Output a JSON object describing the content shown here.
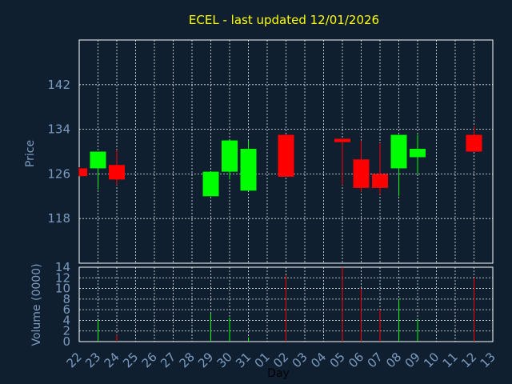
{
  "chart_data": [
    {
      "type": "candlestick",
      "title": "ECEL - last updated 12/01/2026",
      "ylabel": "Price",
      "ylim": [
        110,
        150
      ],
      "yticks": [
        118,
        126,
        134,
        142
      ],
      "grid": true,
      "categories": [
        "22",
        "23",
        "24",
        "25",
        "26",
        "27",
        "28",
        "29",
        "30",
        "31",
        "01",
        "02",
        "03",
        "04",
        "05",
        "06",
        "07",
        "08",
        "09",
        "10",
        "11",
        "12",
        "13"
      ],
      "candles": [
        {
          "x": "22",
          "open": 127.0,
          "high": 127.2,
          "low": 125.6,
          "close": 125.6,
          "color": "red"
        },
        {
          "x": "23",
          "open": 127.0,
          "high": 130.0,
          "low": 123.2,
          "close": 130.0,
          "color": "green"
        },
        {
          "x": "24",
          "open": 127.6,
          "high": 130.3,
          "low": 124.0,
          "close": 125.0,
          "color": "red"
        },
        {
          "x": "29",
          "open": 122.0,
          "high": 126.4,
          "low": 122.0,
          "close": 126.4,
          "color": "green"
        },
        {
          "x": "30",
          "open": 126.4,
          "high": 132.0,
          "low": 125.0,
          "close": 132.0,
          "color": "green"
        },
        {
          "x": "31",
          "open": 123.0,
          "high": 132.0,
          "low": 123.0,
          "close": 130.5,
          "color": "green"
        },
        {
          "x": "02",
          "open": 133.0,
          "high": 133.0,
          "low": 125.5,
          "close": 125.5,
          "color": "red"
        },
        {
          "x": "05",
          "open": 132.3,
          "high": 132.3,
          "low": 124.0,
          "close": 131.7,
          "color": "red"
        },
        {
          "x": "06",
          "open": 128.6,
          "high": 132.0,
          "low": 122.8,
          "close": 123.5,
          "color": "red"
        },
        {
          "x": "07",
          "open": 126.0,
          "high": 131.5,
          "low": 122.3,
          "close": 123.5,
          "color": "red"
        },
        {
          "x": "08",
          "open": 127.0,
          "high": 133.0,
          "low": 122.0,
          "close": 133.0,
          "color": "green"
        },
        {
          "x": "09",
          "open": 129.0,
          "high": 133.0,
          "low": 126.0,
          "close": 130.5,
          "color": "green"
        },
        {
          "x": "12",
          "open": 133.0,
          "high": 134.5,
          "low": 130.0,
          "close": 130.0,
          "color": "red"
        }
      ]
    },
    {
      "type": "bar",
      "xlabel": "Day",
      "ylabel": "Volume (0000)",
      "ylim": [
        0,
        14
      ],
      "yticks": [
        0,
        2,
        4,
        6,
        8,
        10,
        12,
        14
      ],
      "grid": true,
      "categories": [
        "22",
        "23",
        "24",
        "25",
        "26",
        "27",
        "28",
        "29",
        "30",
        "31",
        "01",
        "02",
        "03",
        "04",
        "05",
        "06",
        "07",
        "08",
        "09",
        "10",
        "11",
        "12",
        "13"
      ],
      "bars": [
        {
          "x": "23",
          "value": 4.0,
          "color": "green"
        },
        {
          "x": "24",
          "value": 1.3,
          "color": "red"
        },
        {
          "x": "29",
          "value": 5.3,
          "color": "green"
        },
        {
          "x": "30",
          "value": 4.5,
          "color": "green"
        },
        {
          "x": "31",
          "value": 0.8,
          "color": "green"
        },
        {
          "x": "02",
          "value": 12.5,
          "color": "red"
        },
        {
          "x": "05",
          "value": 14.0,
          "color": "red"
        },
        {
          "x": "06",
          "value": 10.0,
          "color": "red"
        },
        {
          "x": "07",
          "value": 6.0,
          "color": "red"
        },
        {
          "x": "08",
          "value": 8.0,
          "color": "green"
        },
        {
          "x": "09",
          "value": 4.2,
          "color": "green"
        },
        {
          "x": "12",
          "value": 12.0,
          "color": "red"
        }
      ]
    }
  ],
  "colors": {
    "background": "#0f1f30",
    "axis_text": "#7b9cc0",
    "grid": "#ffffff",
    "title": "#ffff00",
    "up": "#00ff00",
    "down": "#ff0000",
    "day_label": "#000000"
  }
}
